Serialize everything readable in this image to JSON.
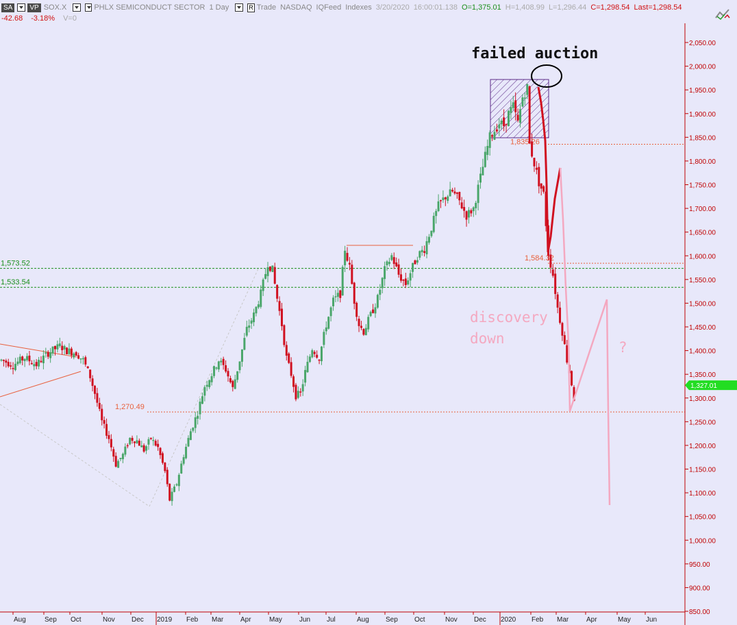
{
  "header": {
    "symbol_btn": "SA",
    "vp_btn": "VP",
    "symbol": "SOX.X",
    "description": "PHLX SEMICONDUCT SECTOR",
    "interval": "1 Day",
    "r_btn": "R",
    "mode": "Trade",
    "exchange": "NASDAQ",
    "feed": "IQFeed",
    "category": "Indexes",
    "date": "3/20/2020",
    "time": "16:00:01.138",
    "open": "O=1,375.01",
    "high": "H=1,408.99",
    "low": "L=1,296.44",
    "close": "C=1,298.54",
    "last": "Last=1,298.54",
    "change": "-42.68",
    "change_pct": "-3.18%",
    "volume": "V=0"
  },
  "colors": {
    "background": "#e8e8fa",
    "up": "#4aa66a",
    "down": "#d01020",
    "level_green": "#1a8f1a",
    "level_orange": "#e8603c",
    "annotation_pink": "#f4a8c0",
    "axis_red": "#c00000",
    "price_tag": "#22dd22"
  },
  "chart_data": {
    "type": "candlestick",
    "x_labels": [
      "Aug",
      "Sep",
      "Oct",
      "Nov",
      "Dec",
      "2019",
      "Feb",
      "Mar",
      "Apr",
      "May",
      "Jun",
      "Jul",
      "Aug",
      "Sep",
      "Oct",
      "Nov",
      "Dec",
      "2020",
      "Feb",
      "Mar",
      "Apr",
      "May",
      "Jun"
    ],
    "y_ticks": [
      "2,050.00",
      "2,000.00",
      "1,950.00",
      "1,900.00",
      "1,850.00",
      "1,800.00",
      "1,750.00",
      "1,700.00",
      "1,650.00",
      "1,600.00",
      "1,550.00",
      "1,500.00",
      "1,450.00",
      "1,400.00",
      "1,350.00",
      "1,300.00",
      "1,250.00",
      "1,200.00",
      "1,150.00",
      "1,100.00",
      "1,050.00",
      "1,000.00",
      "950.00",
      "900.00",
      "850.00"
    ],
    "ylim": [
      840,
      2080
    ],
    "price_tag": "1,327.01",
    "price_tag_value": 1327.01,
    "levels": [
      {
        "label": "1,573.52",
        "value": 1573.52,
        "style": "green-dashed",
        "label_side": "left"
      },
      {
        "label": "1,533.54",
        "value": 1533.54,
        "style": "green-dashed",
        "label_side": "left"
      },
      {
        "label": "1,270.49",
        "value": 1270.49,
        "style": "orange-dashed",
        "label_side": "left"
      },
      {
        "label": "1,584.32",
        "value": 1584.32,
        "style": "orange-dashed",
        "label_side": "right"
      },
      {
        "label": "1,835.26",
        "value": 1835.26,
        "style": "orange-dashed",
        "label_side": "right"
      }
    ],
    "annotations": {
      "failed_auction": "failed auction",
      "discovery_line1": "discovery",
      "discovery_line2": "down",
      "question": "?"
    },
    "series_anchors": [
      [
        0,
        1380
      ],
      [
        5,
        1370
      ],
      [
        10,
        1385
      ],
      [
        15,
        1370
      ],
      [
        20,
        1395
      ],
      [
        25,
        1410
      ],
      [
        28,
        1400
      ],
      [
        32,
        1395
      ],
      [
        35,
        1380
      ],
      [
        38,
        1345
      ],
      [
        40,
        1310
      ],
      [
        43,
        1250
      ],
      [
        46,
        1215
      ],
      [
        49,
        1160
      ],
      [
        52,
        1180
      ],
      [
        55,
        1215
      ],
      [
        58,
        1210
      ],
      [
        61,
        1190
      ],
      [
        64,
        1215
      ],
      [
        67,
        1195
      ],
      [
        70,
        1145
      ],
      [
        72,
        1085
      ],
      [
        75,
        1120
      ],
      [
        78,
        1180
      ],
      [
        81,
        1230
      ],
      [
        84,
        1270
      ],
      [
        87,
        1325
      ],
      [
        90,
        1350
      ],
      [
        93,
        1380
      ],
      [
        96,
        1360
      ],
      [
        99,
        1320
      ],
      [
        102,
        1380
      ],
      [
        105,
        1445
      ],
      [
        108,
        1475
      ],
      [
        111,
        1520
      ],
      [
        114,
        1585
      ],
      [
        116,
        1570
      ],
      [
        118,
        1510
      ],
      [
        120,
        1455
      ],
      [
        122,
        1385
      ],
      [
        124,
        1350
      ],
      [
        126,
        1305
      ],
      [
        128,
        1310
      ],
      [
        130,
        1355
      ],
      [
        133,
        1405
      ],
      [
        136,
        1385
      ],
      [
        139,
        1455
      ],
      [
        142,
        1505
      ],
      [
        145,
        1520
      ],
      [
        147,
        1615
      ],
      [
        149,
        1575
      ],
      [
        151,
        1505
      ],
      [
        153,
        1455
      ],
      [
        155,
        1440
      ],
      [
        158,
        1475
      ],
      [
        161,
        1510
      ],
      [
        164,
        1570
      ],
      [
        167,
        1600
      ],
      [
        170,
        1560
      ],
      [
        173,
        1540
      ],
      [
        175,
        1565
      ],
      [
        178,
        1600
      ],
      [
        181,
        1615
      ],
      [
        184,
        1660
      ],
      [
        187,
        1705
      ],
      [
        190,
        1725
      ],
      [
        193,
        1735
      ],
      [
        196,
        1715
      ],
      [
        199,
        1685
      ],
      [
        202,
        1700
      ],
      [
        205,
        1765
      ],
      [
        207,
        1810
      ],
      [
        209,
        1850
      ],
      [
        211,
        1865
      ],
      [
        213,
        1880
      ],
      [
        215,
        1875
      ],
      [
        217,
        1900
      ],
      [
        219,
        1915
      ],
      [
        221,
        1880
      ],
      [
        223,
        1935
      ],
      [
        225,
        1955
      ],
      [
        226,
        1835
      ],
      [
        228,
        1795
      ],
      [
        230,
        1755
      ],
      [
        232,
        1730
      ],
      [
        234,
        1605
      ],
      [
        236,
        1560
      ],
      [
        238,
        1490
      ],
      [
        240,
        1440
      ],
      [
        242,
        1380
      ],
      [
        244,
        1330
      ],
      [
        245,
        1298.54
      ]
    ]
  }
}
